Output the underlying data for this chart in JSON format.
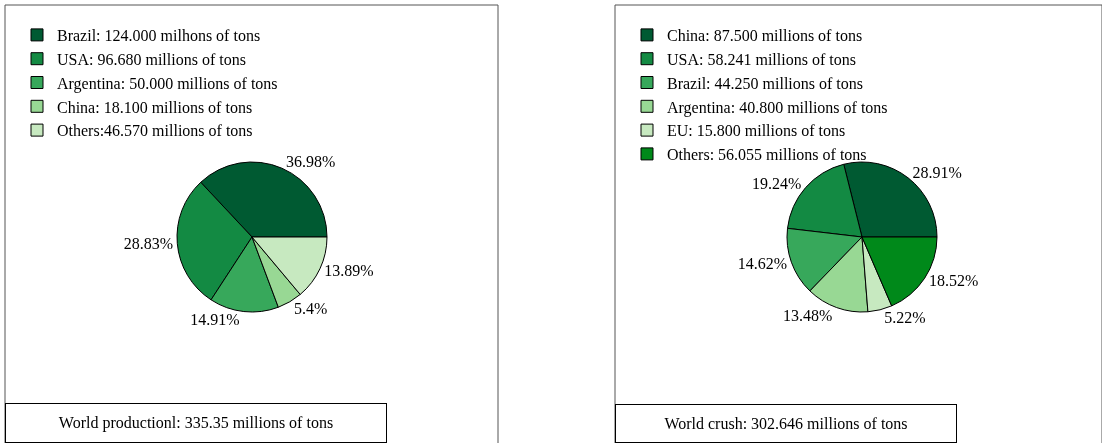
{
  "chart_data": [
    {
      "type": "pie",
      "categories": [
        "Brazil: 124.000 milhons of tons",
        "USA: 96.680 millions of tons",
        "Argentina: 50.000 millions of tons",
        "China: 18.100 millions of tons",
        "Others:46.570 millions of tons"
      ],
      "values": [
        36.98,
        28.83,
        14.91,
        5.4,
        13.89
      ],
      "colors": [
        "#005a32",
        "#138a43",
        "#37a85b",
        "#98d894",
        "#c7e9c0"
      ],
      "value_labels": [
        "36.98%",
        "28.83%",
        "14.91%",
        "5.4%",
        "13.89%"
      ],
      "legend": "top left",
      "annotations": [
        "World productionl: 335.35 millions of tons"
      ]
    },
    {
      "type": "pie",
      "categories": [
        "China: 87.500 millions of tons",
        "USA: 58.241 millions of tons",
        "Brazil: 44.250 millions of tons",
        "Argentina: 40.800 millions of tons",
        "EU: 15.800 millions of tons",
        "Others: 56.055 millions of tons"
      ],
      "values": [
        28.91,
        19.24,
        14.62,
        13.48,
        5.22,
        18.52
      ],
      "colors": [
        "#005a32",
        "#138a43",
        "#37a85b",
        "#98d894",
        "#c7e9c0",
        "#00891a"
      ],
      "value_labels": [
        "28.91%",
        "19.24%",
        "14.62%",
        "13.48%",
        "5.22%",
        "18.52%"
      ],
      "legend": "top left",
      "annotations": [
        "World crush: 302.646 millions of tons"
      ]
    }
  ]
}
